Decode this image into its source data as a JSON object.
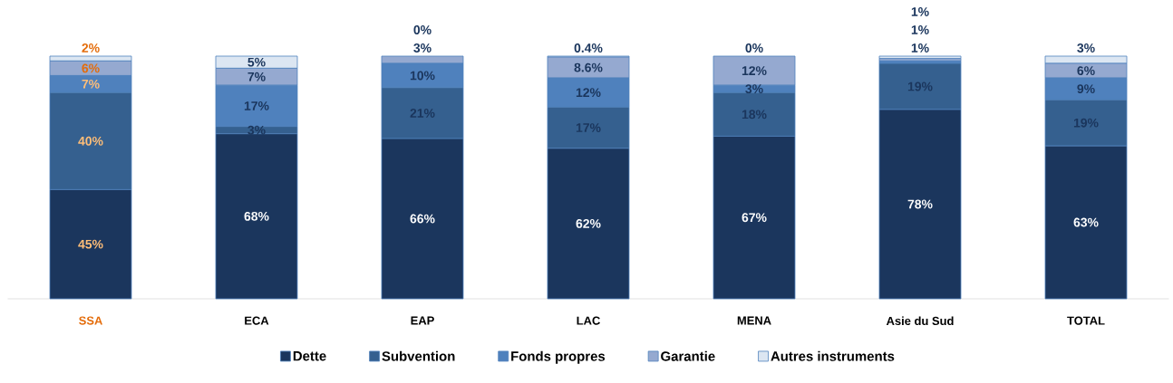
{
  "chart_data": {
    "type": "bar",
    "stacked": true,
    "legend": "bottom",
    "categories": [
      "SSA",
      "ECA",
      "EAP",
      "LAC",
      "MENA",
      "Asie du Sud",
      "TOTAL"
    ],
    "series": [
      {
        "name": "Dette",
        "color": "#1b365d",
        "values": [
          45,
          68,
          66,
          62,
          67,
          78,
          63
        ],
        "value_labels": [
          "45%",
          "68%",
          "66%",
          "62%",
          "67%",
          "78%",
          "63%"
        ]
      },
      {
        "name": "Subvention",
        "color": "#35608f",
        "values": [
          40,
          3,
          21,
          17,
          18,
          19,
          19
        ],
        "value_labels": [
          "40%",
          "3%",
          "21%",
          "17%",
          "18%",
          "19%",
          "19%"
        ]
      },
      {
        "name": "Fonds propres",
        "color": "#4f81bd",
        "values": [
          7,
          17,
          10,
          12,
          3,
          1,
          9
        ],
        "value_labels": [
          "7%",
          "17%",
          "10%",
          "12%",
          "3%",
          "1%",
          "9%"
        ]
      },
      {
        "name": "Garantie",
        "color": "#95a9d0",
        "values": [
          6,
          7,
          3,
          8.6,
          12,
          1,
          6
        ],
        "value_labels": [
          "6%",
          "7%",
          "3%",
          "8.6%",
          "12%",
          "1%",
          "6%"
        ]
      },
      {
        "name": "Autres instruments",
        "color": "#dce6f2",
        "values": [
          2,
          5,
          0,
          0.4,
          0,
          1,
          3
        ],
        "value_labels": [
          "2%",
          "5%",
          "0%",
          "0.4%",
          "0%",
          "1%",
          "3%"
        ]
      }
    ]
  }
}
